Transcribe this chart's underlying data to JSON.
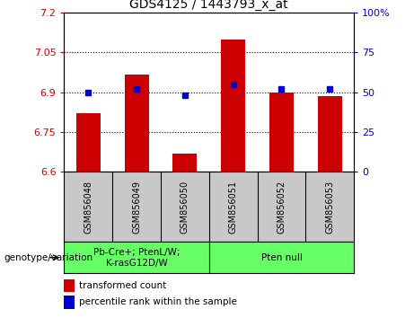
{
  "title": "GDS4125 / 1443793_x_at",
  "samples": [
    "GSM856048",
    "GSM856049",
    "GSM856050",
    "GSM856051",
    "GSM856052",
    "GSM856053"
  ],
  "red_bar_values": [
    6.82,
    6.965,
    6.67,
    7.1,
    6.9,
    6.885
  ],
  "blue_dot_percentiles": [
    50,
    52,
    48,
    55,
    52,
    52
  ],
  "ylim_left": [
    6.6,
    7.2
  ],
  "ylim_right": [
    0,
    100
  ],
  "yticks_left": [
    6.6,
    6.75,
    6.9,
    7.05,
    7.2
  ],
  "yticks_right": [
    0,
    25,
    50,
    75,
    100
  ],
  "group1_label": "Pb-Cre+; PtenL/W;\nK-rasG12D/W",
  "group2_label": "Pten null",
  "genotype_label": "genotype/variation",
  "legend_red": "transformed count",
  "legend_blue": "percentile rank within the sample",
  "bar_color": "#CC0000",
  "dot_color": "#0000CC",
  "tick_area_color": "#C8C8C8",
  "group_area_color": "#66FF66",
  "bar_width": 0.5
}
